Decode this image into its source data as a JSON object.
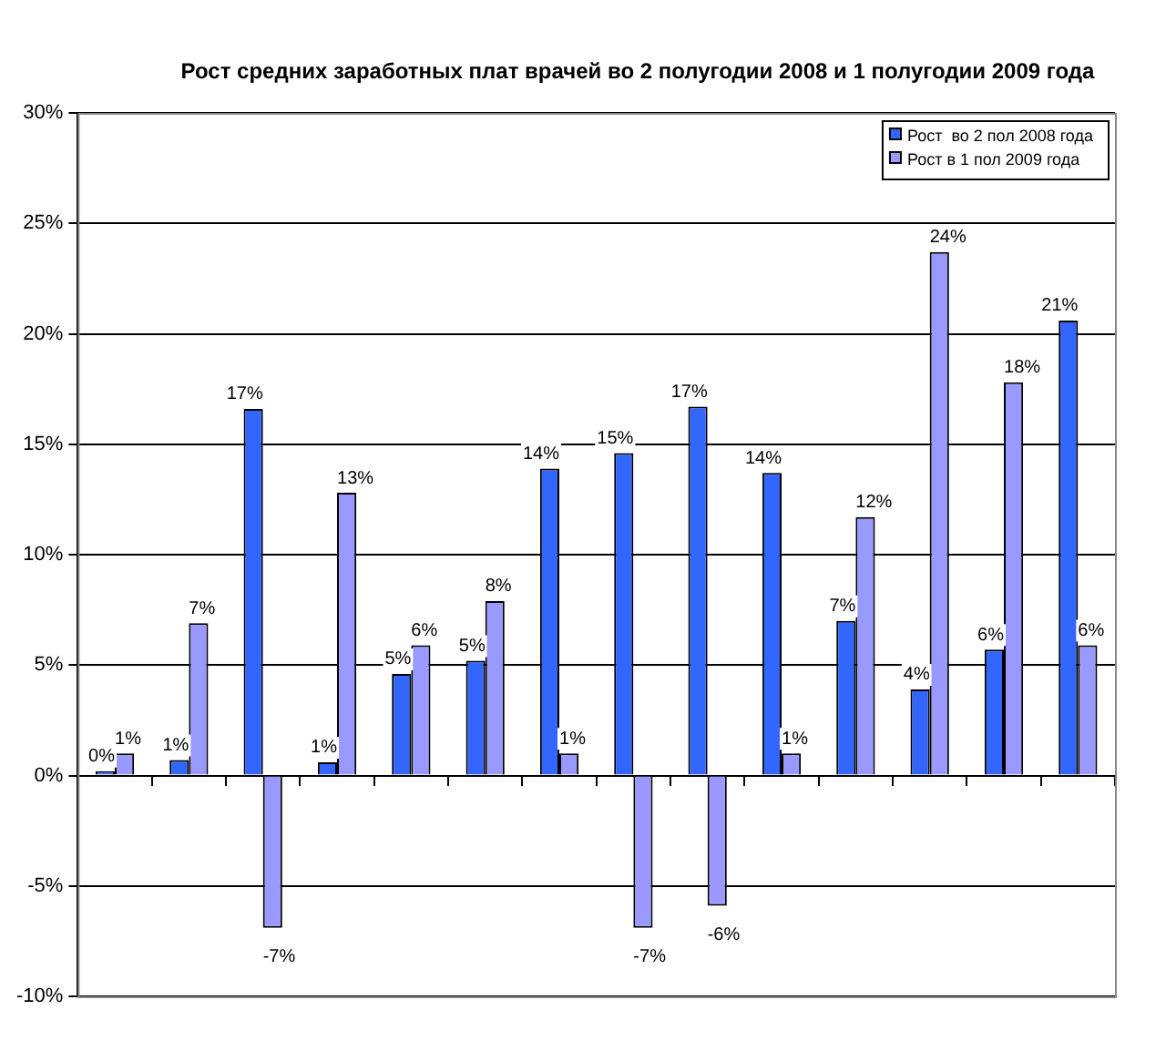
{
  "chart_data": {
    "type": "bar",
    "title": "Рост средних заработных плат врачей во 2 полугодии 2008 и 1 полугодии 2009 года",
    "categories": [
      null,
      null,
      null,
      null,
      null,
      null,
      null,
      null,
      null,
      null,
      null,
      null,
      null,
      null
    ],
    "series": [
      {
        "name": "Рост  во 2 пол 2008 года",
        "color": "#3366ff",
        "values": [
          0.2,
          0.7,
          16.6,
          0.6,
          4.6,
          5.2,
          13.9,
          14.6,
          16.7,
          13.7,
          7.0,
          3.9,
          5.7,
          20.6
        ],
        "value_labels": [
          "0%",
          "1%",
          "17%",
          "1%",
          "5%",
          "5%",
          "14%",
          "15%",
          "17%",
          "14%",
          "7%",
          "4%",
          "6%",
          "21%"
        ]
      },
      {
        "name": "Рост в 1 пол 2009 года",
        "color": "#9999ff",
        "values": [
          1.0,
          6.9,
          -6.9,
          12.8,
          5.9,
          7.9,
          1.0,
          -6.9,
          -5.9,
          1.0,
          11.7,
          23.7,
          17.8,
          5.9
        ],
        "value_labels": [
          "1%",
          "7%",
          "-7%",
          "13%",
          "6%",
          "8%",
          "1%",
          "-7%",
          "-6%",
          "1%",
          "12%",
          "24%",
          "18%",
          "6%"
        ]
      }
    ],
    "ylim": [
      -10,
      30
    ],
    "yticks": [
      {
        "value": -10,
        "label": "-10%"
      },
      {
        "value": -5,
        "label": "-5%"
      },
      {
        "value": 0,
        "label": "0%"
      },
      {
        "value": 5,
        "label": "5%"
      },
      {
        "value": 10,
        "label": "10%"
      },
      {
        "value": 15,
        "label": "15%"
      },
      {
        "value": 20,
        "label": "20%"
      },
      {
        "value": 25,
        "label": "25%"
      },
      {
        "value": 30,
        "label": "30%"
      }
    ],
    "grid": "y",
    "legend": "top right"
  }
}
